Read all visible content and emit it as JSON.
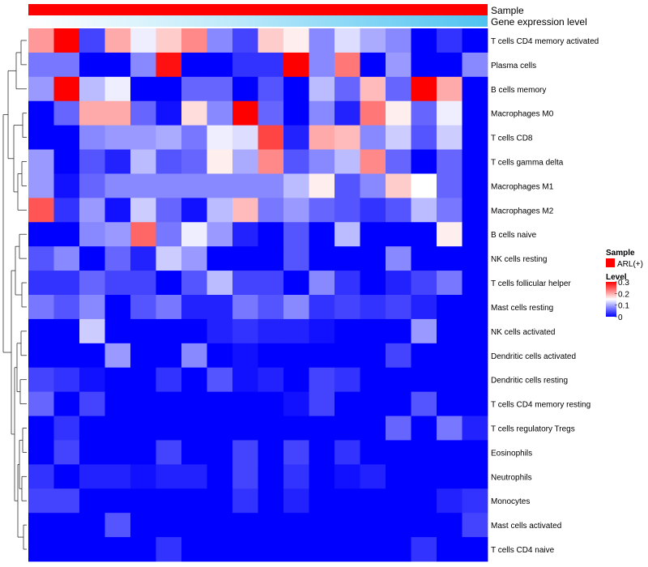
{
  "chart_data": {
    "type": "heatmap",
    "title": "",
    "annotations": {
      "sample_track_label": "Sample",
      "expression_track_label": "Gene expression level",
      "sample_color": "#ff0000",
      "expression_gradient": [
        "#ffffff",
        "#8fd9f5",
        "#4fc3f0"
      ]
    },
    "legend": {
      "sample_title": "Sample",
      "sample_entry": "ARL(+)",
      "level_title": "Level",
      "level_ticks": [
        "0.3",
        "0.2",
        "0.1",
        "0"
      ],
      "level_tick_values": [
        0.3,
        0.2,
        0.1,
        0
      ],
      "colors": {
        "low": "#0000ff",
        "mid": "#ffffff",
        "high": "#ff0000"
      },
      "range": [
        0,
        0.3
      ],
      "placement": "right"
    },
    "rows": [
      "T cells CD4 memory activated",
      "Plasma cells",
      "B cells memory",
      "Macrophages M0",
      "T cells CD8",
      "T cells gamma delta",
      "Macrophages M1",
      "Macrophages M2",
      "B cells naive",
      "NK cells resting",
      "T cells follicular helper",
      "Mast cells resting",
      "NK cells activated",
      "Dendritic cells activated",
      "Dendritic cells resting",
      "T cells CD4 memory resting",
      "T cells regulatory  Tregs",
      "Eosinophils",
      "Neutrophils",
      "Monocytes",
      "Mast cells activated",
      "T cells CD4 naive"
    ],
    "n_samples": 18,
    "values": [
      [
        0.21,
        0.3,
        0.04,
        0.2,
        0.14,
        0.18,
        0.22,
        0.08,
        0.04,
        0.18,
        0.16,
        0.08,
        0.13,
        0.1,
        0.08,
        0.0,
        0.03,
        0.0
      ],
      [
        0.07,
        0.07,
        0.0,
        0.0,
        0.08,
        0.29,
        0.0,
        0.0,
        0.03,
        0.03,
        0.3,
        0.08,
        0.23,
        0.0,
        0.09,
        0.0,
        0.0,
        0.08
      ],
      [
        0.09,
        0.3,
        0.11,
        0.14,
        0.0,
        0.0,
        0.06,
        0.06,
        0.0,
        0.05,
        0.0,
        0.11,
        0.06,
        0.19,
        0.06,
        0.3,
        0.2,
        0.0
      ],
      [
        0.0,
        0.06,
        0.2,
        0.2,
        0.06,
        0.01,
        0.17,
        0.08,
        0.3,
        0.06,
        0.0,
        0.08,
        0.02,
        0.23,
        0.16,
        0.06,
        0.14,
        0.0
      ],
      [
        0.0,
        0.0,
        0.08,
        0.09,
        0.09,
        0.1,
        0.07,
        0.14,
        0.13,
        0.26,
        0.02,
        0.2,
        0.19,
        0.08,
        0.12,
        0.05,
        0.12,
        0.0
      ],
      [
        0.09,
        0.0,
        0.05,
        0.02,
        0.11,
        0.05,
        0.06,
        0.16,
        0.1,
        0.22,
        0.05,
        0.08,
        0.11,
        0.22,
        0.06,
        0.0,
        0.06,
        0.0
      ],
      [
        0.09,
        0.01,
        0.06,
        0.08,
        0.08,
        0.08,
        0.08,
        0.08,
        0.08,
        0.08,
        0.11,
        0.16,
        0.05,
        0.08,
        0.18,
        0.15,
        0.06,
        0.0
      ],
      [
        0.25,
        0.03,
        0.09,
        0.01,
        0.12,
        0.06,
        0.01,
        0.11,
        0.19,
        0.07,
        0.09,
        0.06,
        0.05,
        0.03,
        0.05,
        0.11,
        0.07,
        0.0
      ],
      [
        0.0,
        0.0,
        0.08,
        0.09,
        0.24,
        0.07,
        0.14,
        0.09,
        0.02,
        0.0,
        0.05,
        0.0,
        0.11,
        0.0,
        0.0,
        0.0,
        0.16,
        0.0
      ],
      [
        0.05,
        0.08,
        0.0,
        0.06,
        0.02,
        0.12,
        0.09,
        0.0,
        0.0,
        0.0,
        0.05,
        0.0,
        0.0,
        0.0,
        0.08,
        0.0,
        0.0,
        0.0
      ],
      [
        0.03,
        0.03,
        0.06,
        0.04,
        0.04,
        0.0,
        0.05,
        0.11,
        0.04,
        0.04,
        0.0,
        0.08,
        0.03,
        0.0,
        0.02,
        0.04,
        0.07,
        0.0
      ],
      [
        0.07,
        0.05,
        0.08,
        0.0,
        0.05,
        0.07,
        0.02,
        0.02,
        0.07,
        0.05,
        0.08,
        0.03,
        0.04,
        0.03,
        0.04,
        0.02,
        0.0,
        0.0
      ],
      [
        0.0,
        0.0,
        0.12,
        0.0,
        0.0,
        0.0,
        0.0,
        0.02,
        0.03,
        0.02,
        0.02,
        0.01,
        0.0,
        0.0,
        0.0,
        0.09,
        0.0,
        0.0
      ],
      [
        0.0,
        0.0,
        0.0,
        0.09,
        0.0,
        0.0,
        0.08,
        0.0,
        0.01,
        0.0,
        0.0,
        0.0,
        0.0,
        0.0,
        0.04,
        0.0,
        0.0,
        0.0
      ],
      [
        0.04,
        0.03,
        0.01,
        0.0,
        0.0,
        0.03,
        0.0,
        0.05,
        0.01,
        0.02,
        0.0,
        0.04,
        0.03,
        0.0,
        0.0,
        0.0,
        0.0,
        0.0
      ],
      [
        0.06,
        0.0,
        0.04,
        0.0,
        0.0,
        0.0,
        0.0,
        0.0,
        0.0,
        0.0,
        0.01,
        0.04,
        0.0,
        0.0,
        0.0,
        0.05,
        0.0,
        0.0
      ],
      [
        0.0,
        0.03,
        0.0,
        0.0,
        0.0,
        0.0,
        0.0,
        0.0,
        0.0,
        0.0,
        0.0,
        0.0,
        0.0,
        0.0,
        0.06,
        0.0,
        0.07,
        0.02
      ],
      [
        0.0,
        0.04,
        0.0,
        0.0,
        0.0,
        0.04,
        0.0,
        0.0,
        0.04,
        0.0,
        0.04,
        0.0,
        0.03,
        0.0,
        0.0,
        0.0,
        0.0,
        0.0
      ],
      [
        0.03,
        0.0,
        0.02,
        0.02,
        0.01,
        0.02,
        0.02,
        0.0,
        0.04,
        0.0,
        0.03,
        0.0,
        0.01,
        0.02,
        0.0,
        0.0,
        0.0,
        0.0
      ],
      [
        0.04,
        0.04,
        0.0,
        0.0,
        0.0,
        0.0,
        0.0,
        0.0,
        0.03,
        0.0,
        0.02,
        0.0,
        0.0,
        0.0,
        0.0,
        0.0,
        0.02,
        0.03
      ],
      [
        0.0,
        0.0,
        0.0,
        0.05,
        0.0,
        0.0,
        0.0,
        0.0,
        0.0,
        0.0,
        0.0,
        0.0,
        0.0,
        0.0,
        0.0,
        0.0,
        0.0,
        0.04
      ],
      [
        0.0,
        0.0,
        0.0,
        0.0,
        0.0,
        0.03,
        0.0,
        0.0,
        0.0,
        0.0,
        0.0,
        0.0,
        0.0,
        0.0,
        0.0,
        0.03,
        0.0,
        0.0
      ]
    ],
    "dendrogram": "rows clustered (left side)"
  }
}
